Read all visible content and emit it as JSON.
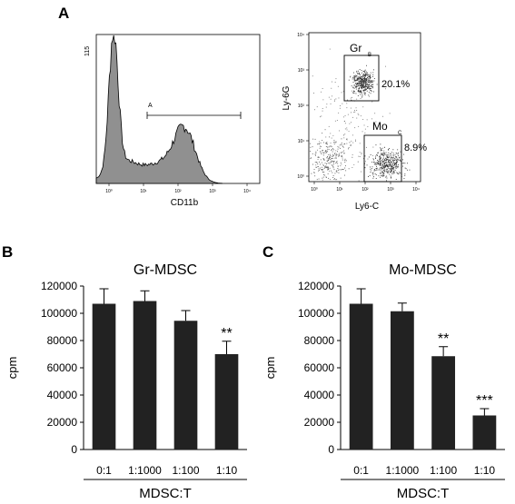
{
  "panel_labels": {
    "A": "A",
    "B": "B",
    "C": "C"
  },
  "histogram": {
    "y_max_label": "115",
    "x_label": "CD11b",
    "gate_label": "A",
    "x_ticks": [
      "10⁰",
      "10¹",
      "10²",
      "10³",
      "10⁴"
    ],
    "fill": "#909090"
  },
  "dotplot": {
    "x_label": "Ly6-C",
    "y_label": "Ly-6G",
    "x_ticks": [
      "10⁰",
      "10¹",
      "10²",
      "10³",
      "10⁴"
    ],
    "y_ticks": [
      "10⁰",
      "10¹",
      "10²",
      "10³",
      "10⁴"
    ],
    "gates": [
      {
        "name": "Gr",
        "letter": "B",
        "percent": "20.1%"
      },
      {
        "name": "Mo",
        "letter": "C",
        "percent": "8.9%"
      }
    ]
  },
  "chart_data": [
    {
      "type": "bar",
      "panel": "B",
      "title": "Gr-MDSC",
      "xlabel": "MDSC:T",
      "ylabel": "cpm",
      "categories": [
        "0:1",
        "1:1000",
        "1:100",
        "1:10"
      ],
      "values": [
        107000,
        109000,
        94500,
        70000
      ],
      "errors": [
        11000,
        7500,
        7500,
        9500
      ],
      "annotations": [
        "",
        "",
        "",
        "**"
      ],
      "ylim": [
        0,
        120000
      ],
      "yticks": [
        0,
        20000,
        40000,
        60000,
        80000,
        100000,
        120000
      ],
      "bar_color": "#222222"
    },
    {
      "type": "bar",
      "panel": "C",
      "title": "Mo-MDSC",
      "xlabel": "MDSC:T",
      "ylabel": "cpm",
      "categories": [
        "0:1",
        "1:1000",
        "1:100",
        "1:10"
      ],
      "values": [
        107000,
        101500,
        68500,
        25000
      ],
      "errors": [
        11000,
        6000,
        7000,
        5000
      ],
      "annotations": [
        "",
        "",
        "**",
        "***"
      ],
      "ylim": [
        0,
        120000
      ],
      "yticks": [
        0,
        20000,
        40000,
        60000,
        80000,
        100000,
        120000
      ],
      "bar_color": "#222222"
    }
  ]
}
